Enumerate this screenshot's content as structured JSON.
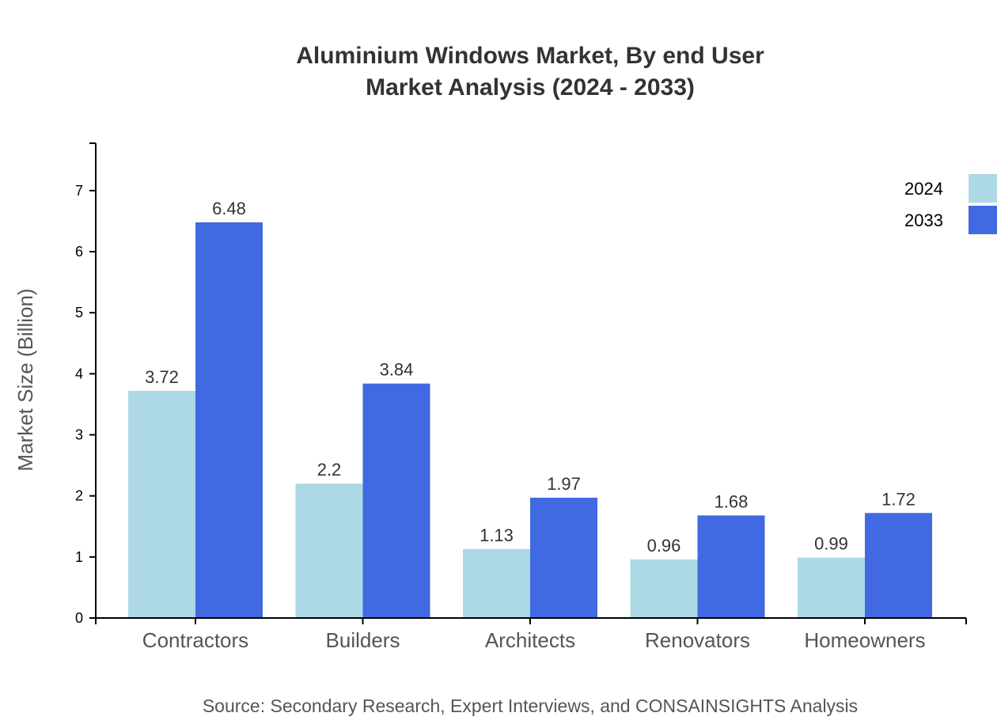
{
  "chart_data": {
    "type": "bar",
    "title": "Aluminium Windows Market, By end User",
    "subtitle": "Market Analysis (2024 - 2033)",
    "xlabel": "",
    "ylabel": "Market Size (Billion)",
    "categories": [
      "Contractors",
      "Builders",
      "Architects",
      "Renovators",
      "Homeowners"
    ],
    "series": [
      {
        "name": "2024",
        "color": "#ADD8E6",
        "values": [
          3.72,
          2.2,
          1.13,
          0.96,
          0.99
        ]
      },
      {
        "name": "2033",
        "color": "#4169E1",
        "values": [
          6.48,
          3.84,
          1.97,
          1.68,
          1.72
        ]
      }
    ],
    "ylim": [
      0,
      7.776
    ],
    "yticks": [
      0,
      1,
      2,
      3,
      4,
      5,
      6,
      7
    ],
    "grid": false,
    "legend_position": "top-right",
    "source": "Source: Secondary Research, Expert Interviews, and CONSAINSIGHTS Analysis"
  }
}
